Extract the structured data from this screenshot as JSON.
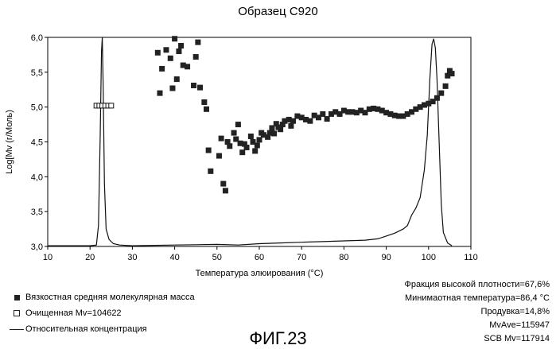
{
  "chart_data": {
    "type": "scatter",
    "title": "Образец C920",
    "xlabel": "Температура элюирования (°C)",
    "ylabel": "Log[Mv (г/Моль)",
    "xlim": [
      10,
      110
    ],
    "ylim": [
      3.0,
      6.0
    ],
    "x_ticks": [
      "10",
      "20",
      "30",
      "40",
      "50",
      "60",
      "70",
      "80",
      "90",
      "100",
      "110"
    ],
    "y_ticks": [
      "3,0",
      "3,5",
      "4,0",
      "4,5",
      "5,0",
      "5,5",
      "6,0"
    ],
    "grid": false,
    "legend_position": "bottom-left",
    "series": [
      {
        "name": "Вязкостная средняя молекулярная масса",
        "marker": "filled-square",
        "points": [
          [
            36,
            5.78
          ],
          [
            36.5,
            5.2
          ],
          [
            37,
            5.55
          ],
          [
            38,
            5.82
          ],
          [
            39,
            5.7
          ],
          [
            39.5,
            5.27
          ],
          [
            40,
            5.98
          ],
          [
            40.5,
            5.4
          ],
          [
            41,
            5.8
          ],
          [
            41.5,
            5.88
          ],
          [
            42,
            5.6
          ],
          [
            43,
            5.58
          ],
          [
            44.5,
            5.31
          ],
          [
            45,
            5.72
          ],
          [
            45.5,
            5.93
          ],
          [
            46,
            5.28
          ],
          [
            47,
            5.07
          ],
          [
            47.5,
            4.97
          ],
          [
            48,
            4.38
          ],
          [
            48.5,
            4.08
          ],
          [
            50.5,
            4.3
          ],
          [
            51,
            4.55
          ],
          [
            51.5,
            3.9
          ],
          [
            52,
            3.8
          ],
          [
            52.5,
            4.5
          ],
          [
            53,
            4.44
          ],
          [
            54,
            4.63
          ],
          [
            54.5,
            4.54
          ],
          [
            55,
            4.75
          ],
          [
            55.5,
            4.48
          ],
          [
            56,
            4.35
          ],
          [
            56.5,
            4.47
          ],
          [
            57,
            4.42
          ],
          [
            58,
            4.58
          ],
          [
            58.5,
            4.5
          ],
          [
            59,
            4.37
          ],
          [
            59.5,
            4.45
          ],
          [
            60,
            4.53
          ],
          [
            60.5,
            4.63
          ],
          [
            61,
            4.6
          ],
          [
            62,
            4.57
          ],
          [
            62.5,
            4.63
          ],
          [
            63,
            4.7
          ],
          [
            63.5,
            4.62
          ],
          [
            64,
            4.76
          ],
          [
            64.5,
            4.71
          ],
          [
            65,
            4.68
          ],
          [
            65.5,
            4.75
          ],
          [
            66,
            4.8
          ],
          [
            67,
            4.82
          ],
          [
            67.5,
            4.73
          ],
          [
            68,
            4.8
          ],
          [
            69,
            4.87
          ],
          [
            70,
            4.85
          ],
          [
            71,
            4.82
          ],
          [
            72,
            4.8
          ],
          [
            73,
            4.88
          ],
          [
            74,
            4.85
          ],
          [
            75,
            4.9
          ],
          [
            76,
            4.83
          ],
          [
            77,
            4.9
          ],
          [
            78,
            4.93
          ],
          [
            79,
            4.9
          ],
          [
            80,
            4.95
          ],
          [
            81,
            4.93
          ],
          [
            82,
            4.93
          ],
          [
            83,
            4.92
          ],
          [
            84,
            4.95
          ],
          [
            85,
            4.92
          ],
          [
            86,
            4.97
          ],
          [
            87,
            4.98
          ],
          [
            88,
            4.97
          ],
          [
            89,
            4.95
          ],
          [
            90,
            4.92
          ],
          [
            91,
            4.9
          ],
          [
            92,
            4.88
          ],
          [
            93,
            4.87
          ],
          [
            94,
            4.87
          ],
          [
            95,
            4.9
          ],
          [
            96,
            4.93
          ],
          [
            97,
            4.97
          ],
          [
            98,
            5.0
          ],
          [
            99,
            5.03
          ],
          [
            100,
            5.05
          ],
          [
            101,
            5.08
          ],
          [
            102,
            5.13
          ],
          [
            103,
            5.2
          ],
          [
            104,
            5.3
          ],
          [
            104.5,
            5.45
          ],
          [
            105,
            5.52
          ],
          [
            105.5,
            5.48
          ]
        ]
      },
      {
        "name": "Очищенная Mv=104622",
        "marker": "open-square",
        "points": [
          [
            21.5,
            5.02
          ],
          [
            22.2,
            5.02
          ],
          [
            22.9,
            5.02
          ],
          [
            23.6,
            5.02
          ],
          [
            24.3,
            5.02
          ],
          [
            25,
            5.02
          ]
        ]
      },
      {
        "name": "Относительная концентрация",
        "marker": "line",
        "points": [
          [
            10,
            3.01
          ],
          [
            20,
            3.01
          ],
          [
            21.5,
            3.02
          ],
          [
            22.0,
            3.3
          ],
          [
            22.4,
            4.6
          ],
          [
            22.7,
            5.8
          ],
          [
            22.9,
            6.0
          ],
          [
            23.1,
            5.3
          ],
          [
            23.4,
            3.9
          ],
          [
            23.8,
            3.25
          ],
          [
            24.5,
            3.1
          ],
          [
            25.5,
            3.04
          ],
          [
            27,
            3.02
          ],
          [
            30,
            3.01
          ],
          [
            40,
            3.02
          ],
          [
            50,
            3.03
          ],
          [
            55,
            3.02
          ],
          [
            60,
            3.04
          ],
          [
            65,
            3.05
          ],
          [
            70,
            3.06
          ],
          [
            75,
            3.07
          ],
          [
            80,
            3.08
          ],
          [
            85,
            3.09
          ],
          [
            88,
            3.11
          ],
          [
            90,
            3.15
          ],
          [
            92,
            3.19
          ],
          [
            94,
            3.25
          ],
          [
            95,
            3.3
          ],
          [
            96,
            3.45
          ],
          [
            97,
            3.55
          ],
          [
            98,
            3.7
          ],
          [
            99,
            4.1
          ],
          [
            99.7,
            4.6
          ],
          [
            100.3,
            5.4
          ],
          [
            100.8,
            5.9
          ],
          [
            101.2,
            5.98
          ],
          [
            101.6,
            5.85
          ],
          [
            102,
            5.4
          ],
          [
            102.5,
            4.5
          ],
          [
            103,
            3.6
          ],
          [
            103.5,
            3.2
          ],
          [
            104.5,
            3.05
          ],
          [
            105.5,
            3.01
          ]
        ]
      }
    ]
  },
  "legend": {
    "items": [
      {
        "label": "Вязкостная средняя молекулярная масса"
      },
      {
        "label": "Очищенная Mv=104622"
      },
      {
        "label": "Относительная концентрация"
      }
    ]
  },
  "stats": [
    "Фракция высокой плотности=67,6%",
    "Минимаотная температура=86,4 °C",
    "Продувка=14,8%",
    "MvAve=115947",
    "SCB Mv=117914"
  ],
  "figure_label": "ФИГ.23"
}
